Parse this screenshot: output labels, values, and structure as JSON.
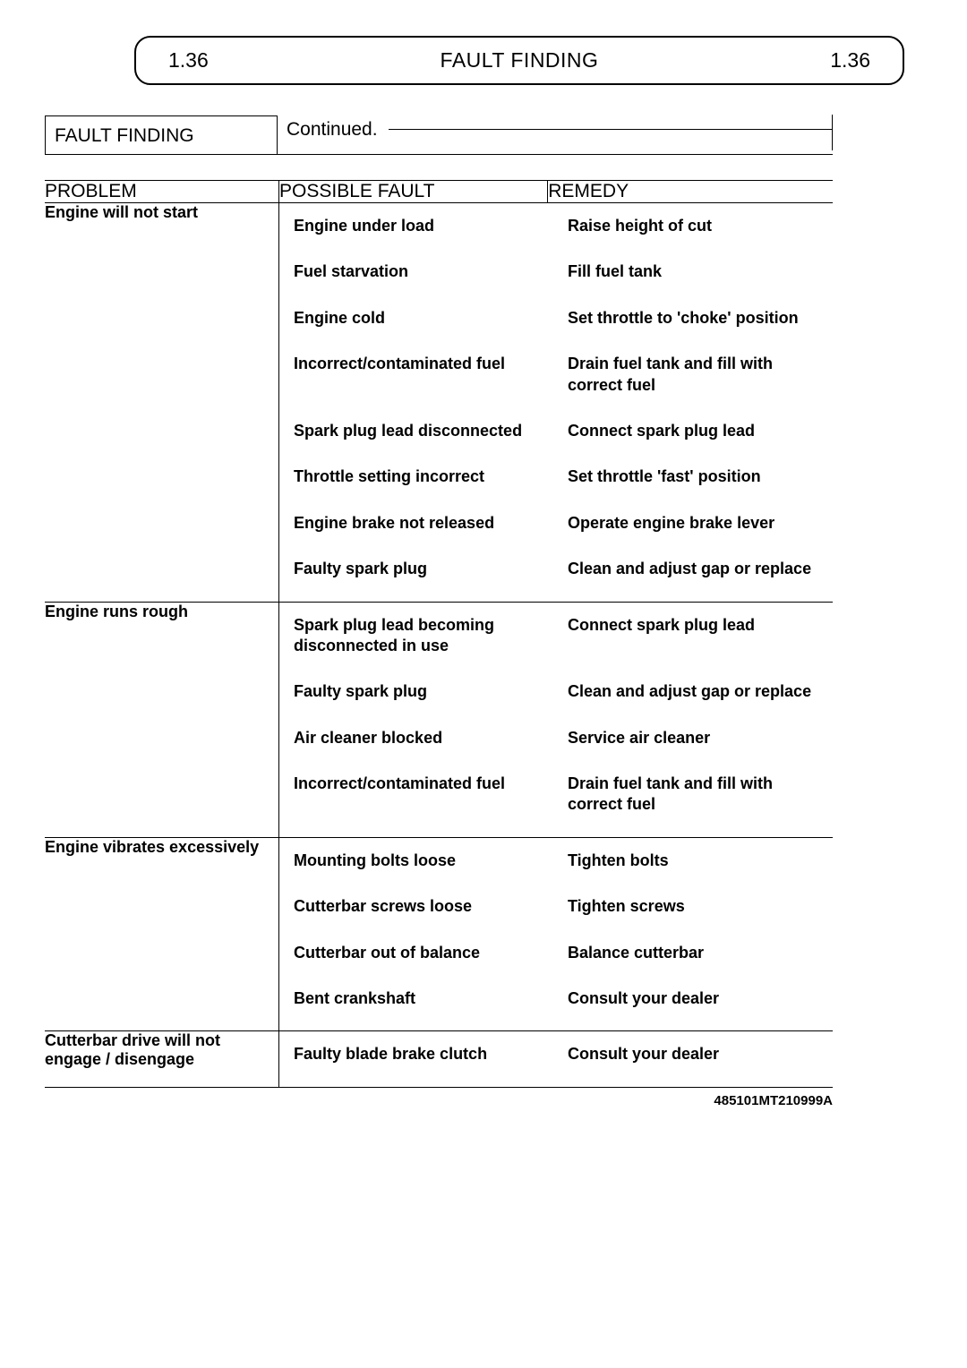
{
  "header": {
    "left_num": "1.36",
    "title": "FAULT FINDING",
    "right_num": "1.36"
  },
  "subheader": {
    "box_label": "FAULT FINDING",
    "continued": "Continued."
  },
  "columns": {
    "problem": "PROBLEM",
    "fault": "POSSIBLE FAULT",
    "remedy": "REMEDY"
  },
  "sections": [
    {
      "problem": "Engine will not start",
      "rows": [
        {
          "fault": "Engine under load",
          "remedy": "Raise height of cut"
        },
        {
          "fault": "Fuel starvation",
          "remedy": "Fill fuel tank"
        },
        {
          "fault": "Engine cold",
          "remedy": "Set throttle to 'choke' position"
        },
        {
          "fault": "Incorrect/contaminated fuel",
          "remedy": "Drain fuel tank and fill with correct fuel"
        },
        {
          "fault": "Spark plug lead disconnected",
          "remedy": "Connect spark plug lead"
        },
        {
          "fault": "Throttle setting incorrect",
          "remedy": "Set throttle 'fast' position"
        },
        {
          "fault": "Engine brake not released",
          "remedy": "Operate engine brake lever"
        },
        {
          "fault": "Faulty spark plug",
          "remedy": "Clean and adjust gap or replace"
        }
      ]
    },
    {
      "problem": "Engine runs rough",
      "rows": [
        {
          "fault": "Spark plug lead becoming disconnected in use",
          "remedy": "Connect spark plug lead"
        },
        {
          "fault": "Faulty spark plug",
          "remedy": "Clean and adjust gap or replace"
        },
        {
          "fault": "Air cleaner blocked",
          "remedy": "Service air cleaner"
        },
        {
          "fault": "Incorrect/contaminated fuel",
          "remedy": "Drain fuel tank and fill with correct fuel"
        }
      ]
    },
    {
      "problem": "Engine vibrates excessively",
      "rows": [
        {
          "fault": "Mounting bolts loose",
          "remedy": "Tighten bolts"
        },
        {
          "fault": "Cutterbar screws loose",
          "remedy": "Tighten screws"
        },
        {
          "fault": "Cutterbar out of balance",
          "remedy": "Balance cutterbar"
        },
        {
          "fault": "Bent crankshaft",
          "remedy": "Consult your dealer"
        }
      ]
    },
    {
      "problem": "Cutterbar drive will not engage / disengage",
      "rows": [
        {
          "fault": "Faulty blade brake clutch",
          "remedy": "Consult your dealer"
        }
      ]
    }
  ],
  "refno": "485101MT210999A"
}
